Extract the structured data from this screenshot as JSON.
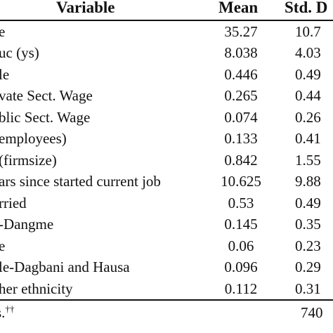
{
  "table": {
    "headers": {
      "variable": "Variable",
      "mean": "Mean",
      "sd": "Std. D"
    },
    "rows": [
      {
        "variable": "e",
        "mean": "35.27",
        "sd": "10.7"
      },
      {
        "variable": "uc (ys)",
        "mean": "8.038",
        "sd": "4.03"
      },
      {
        "variable": "le",
        "mean": "0.446",
        "sd": "0.49"
      },
      {
        "variable": "vate Sect. Wage",
        "mean": "0.265",
        "sd": "0.44"
      },
      {
        "variable": "blic Sect. Wage",
        "mean": "0.074",
        "sd": "0.26"
      },
      {
        "variable": "employees)",
        "mean": "0.133",
        "sd": "0.41"
      },
      {
        "variable": "(firmsize)",
        "mean": "0.842",
        "sd": "1.55"
      },
      {
        "variable": "ars since started current job",
        "mean": "10.625",
        "sd": "9.88"
      },
      {
        "variable": "rried",
        "mean": "0.53",
        "sd": "0.49"
      },
      {
        "variable": "-Dangme",
        "mean": "0.145",
        "sd": "0.35"
      },
      {
        "variable": "e",
        "mean": "0.06",
        "sd": "0.23"
      },
      {
        "variable": "le-Dagbani and Hausa",
        "mean": "0.096",
        "sd": "0.29"
      },
      {
        "variable": "her ethnicity",
        "mean": "0.112",
        "sd": "0.31"
      }
    ],
    "footer": {
      "note": "s.",
      "note_mark": "††",
      "n": "740"
    }
  }
}
